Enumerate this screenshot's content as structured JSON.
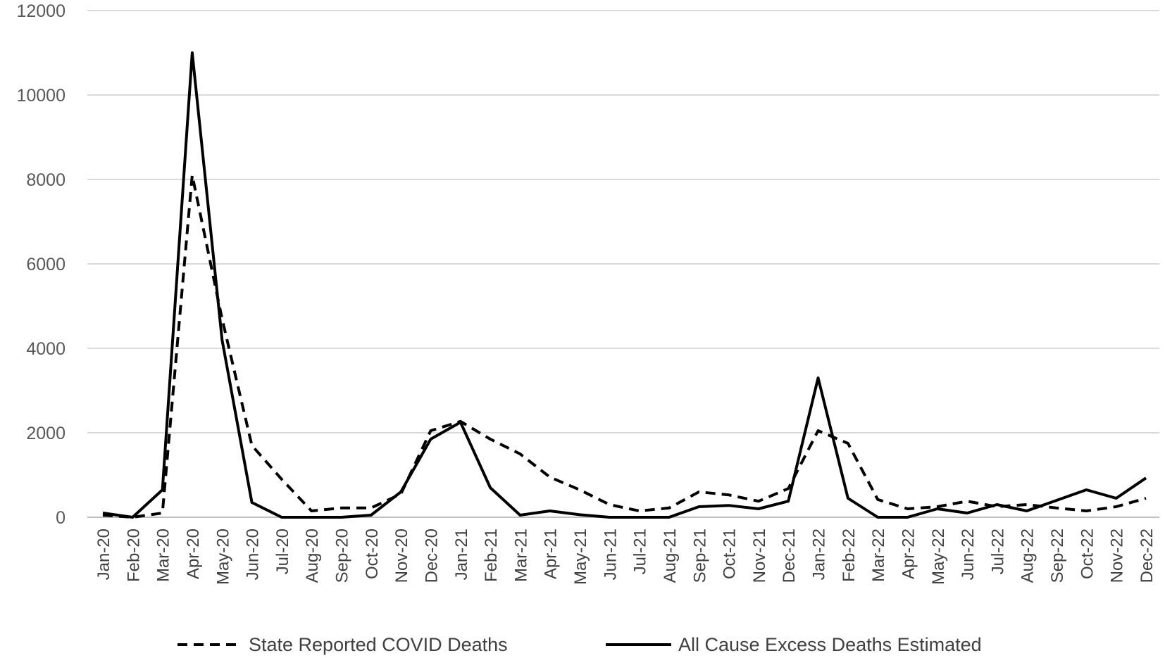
{
  "chart_data": {
    "type": "line",
    "title": "",
    "xlabel": "",
    "ylabel": "",
    "ylim": [
      0,
      12000
    ],
    "yticks": [
      0,
      2000,
      4000,
      6000,
      8000,
      10000,
      12000
    ],
    "ytick_labels": [
      "0",
      "2000",
      "4000",
      "6000",
      "8000",
      "10000",
      "12000"
    ],
    "grid": "horizontal",
    "legend_position": "bottom",
    "categories": [
      "Jan-20",
      "Feb-20",
      "Mar-20",
      "Apr-20",
      "May-20",
      "Jun-20",
      "Jul-20",
      "Aug-20",
      "Sep-20",
      "Oct-20",
      "Nov-20",
      "Dec-20",
      "Jan-21",
      "Feb-21",
      "Mar-21",
      "Apr-21",
      "May-21",
      "Jun-21",
      "Jul-21",
      "Aug-21",
      "Sep-21",
      "Oct-21",
      "Nov-21",
      "Dec-21",
      "Jan-22",
      "Feb-22",
      "Mar-22",
      "Apr-22",
      "May-22",
      "Jun-22",
      "Jul-22",
      "Aug-22",
      "Sep-22",
      "Oct-22",
      "Nov-22",
      "Dec-22"
    ],
    "series": [
      {
        "name": "State Reported COVID Deaths",
        "style": "dashed",
        "color": "#000000",
        "values": [
          50,
          0,
          100,
          8100,
          4700,
          1700,
          900,
          150,
          220,
          220,
          550,
          2050,
          2270,
          1850,
          1500,
          950,
          650,
          300,
          150,
          220,
          600,
          530,
          380,
          680,
          2050,
          1750,
          420,
          200,
          250,
          380,
          250,
          300,
          220,
          150,
          250,
          450
        ]
      },
      {
        "name": "All Cause Excess Deaths Estimated",
        "style": "solid",
        "color": "#000000",
        "values": [
          100,
          0,
          650,
          11000,
          4200,
          350,
          0,
          0,
          0,
          50,
          600,
          1850,
          2250,
          700,
          50,
          150,
          60,
          0,
          0,
          0,
          250,
          280,
          200,
          380,
          3300,
          450,
          0,
          0,
          200,
          100,
          300,
          150,
          400,
          650,
          450,
          930
        ]
      }
    ]
  }
}
